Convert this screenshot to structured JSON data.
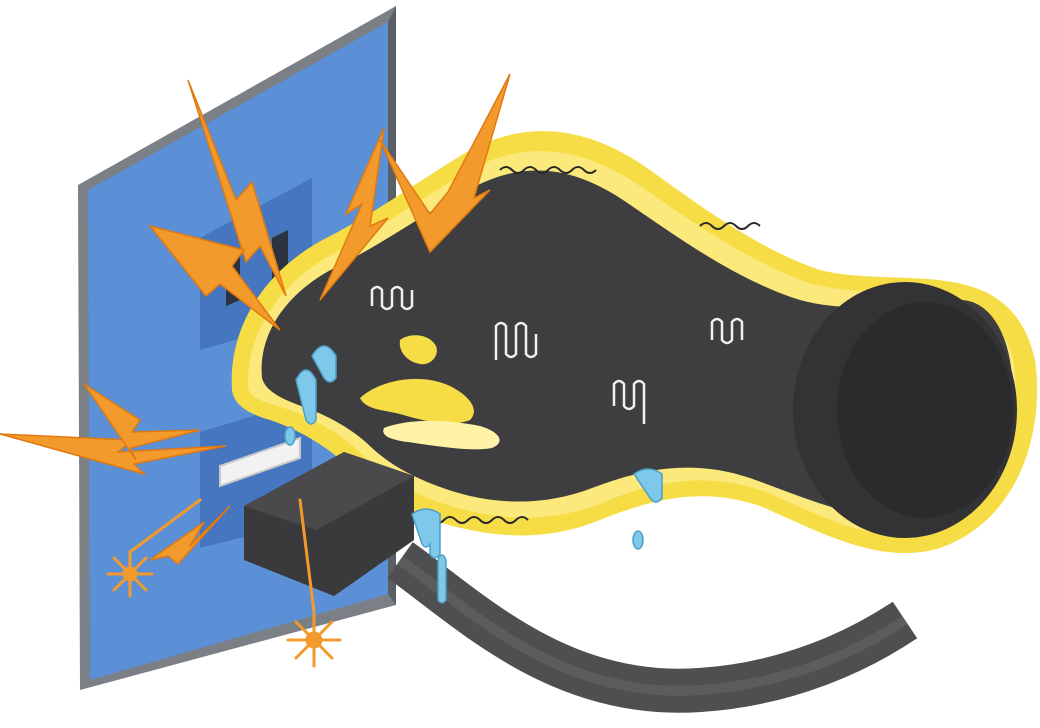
{
  "illustration": {
    "subject": "wet-hand-touching-outlet",
    "colors": {
      "background": "#ffffff",
      "wall_plate": "#5b8fd6",
      "wall_plate_border": "#7b7f86",
      "outlet_slot": "#2b3240",
      "hand": "#3e3e40",
      "hand_glow": "#f7dd45",
      "glow_inner": "#fff3a8",
      "plug": "#3a3a3c",
      "cord": "#4f4f52",
      "spark": "#f39a2d",
      "water": "#7ec8ea"
    },
    "icons": [
      "lightning-bolt-icon",
      "spark-burst-icon",
      "water-drip-icon",
      "shiver-mark-icon"
    ]
  }
}
